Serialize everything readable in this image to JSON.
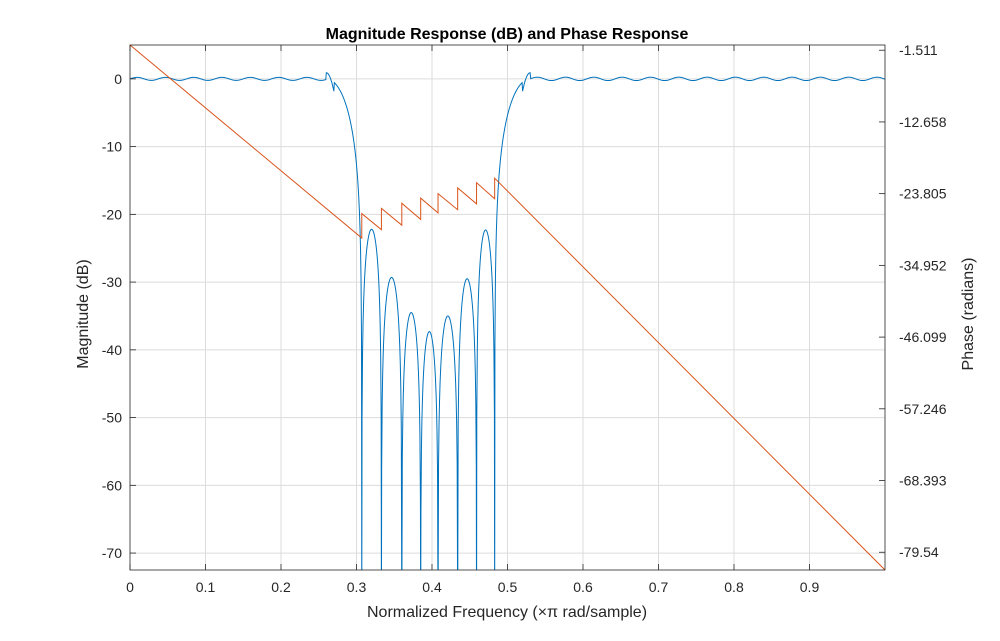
{
  "chart_data": {
    "type": "line",
    "title": "Magnitude Response (dB) and Phase Response",
    "xlabel": "Normalized Frequency (×π rad/sample)",
    "ylabel_left": "Magnitude (dB)",
    "ylabel_right": "Phase (radians)",
    "xlim": [
      0,
      1
    ],
    "ylim_left": [
      -72.5,
      5
    ],
    "ylim_right": [
      -82.3,
      -0.7
    ],
    "x_ticks": [
      "0",
      "0.1",
      "0.2",
      "0.3",
      "0.4",
      "0.5",
      "0.6",
      "0.7",
      "0.8",
      "0.9"
    ],
    "x_tick_values": [
      0,
      0.1,
      0.2,
      0.3,
      0.4,
      0.5,
      0.6,
      0.7,
      0.8,
      0.9
    ],
    "y_ticks_left": [
      "0",
      "-10",
      "-20",
      "-30",
      "-40",
      "-50",
      "-60",
      "-70"
    ],
    "y_tick_values_left": [
      0,
      -10,
      -20,
      -30,
      -40,
      -50,
      -60,
      -70
    ],
    "y_ticks_right": [
      "-1.511",
      "-12.658",
      "-23.805",
      "-34.952",
      "-46.099",
      "-57.246",
      "-68.393",
      "-79.54"
    ],
    "y_tick_values_right": [
      -1.511,
      -12.658,
      -23.805,
      -34.952,
      -46.099,
      -57.246,
      -68.393,
      -79.54
    ],
    "grid": true,
    "series": [
      {
        "axis": "left",
        "color": "#0072BD",
        "passband_ripple_db": 0.5,
        "passband_edges": [
          0.26,
          0.53
        ],
        "stopband_nulls": [
          0.307,
          0.333,
          0.36,
          0.385,
          0.408,
          0.434,
          0.459,
          0.483
        ],
        "stopband_lobes": [
          {
            "x": 0.32,
            "y": -22.2
          },
          {
            "x": 0.347,
            "y": -29.3
          },
          {
            "x": 0.373,
            "y": -34.5
          },
          {
            "x": 0.396,
            "y": -37.3
          },
          {
            "x": 0.421,
            "y": -35.0
          },
          {
            "x": 0.447,
            "y": -29.5
          },
          {
            "x": 0.473,
            "y": -22.3
          }
        ]
      },
      {
        "axis": "right",
        "color": "#D95319",
        "points": [
          [
            0,
            -0.7
          ],
          [
            0.307,
            -30.7
          ],
          [
            0.307,
            -26.9
          ],
          [
            0.333,
            -29.4
          ],
          [
            0.333,
            -26.1
          ],
          [
            0.36,
            -28.7
          ],
          [
            0.36,
            -25.3
          ],
          [
            0.385,
            -27.8
          ],
          [
            0.385,
            -24.5
          ],
          [
            0.408,
            -26.8
          ],
          [
            0.408,
            -23.8
          ],
          [
            0.434,
            -26.3
          ],
          [
            0.434,
            -22.9
          ],
          [
            0.459,
            -25.4
          ],
          [
            0.459,
            -22.1
          ],
          [
            0.483,
            -24.6
          ],
          [
            0.483,
            -21.4
          ],
          [
            1.0,
            -82.3
          ]
        ]
      }
    ]
  }
}
